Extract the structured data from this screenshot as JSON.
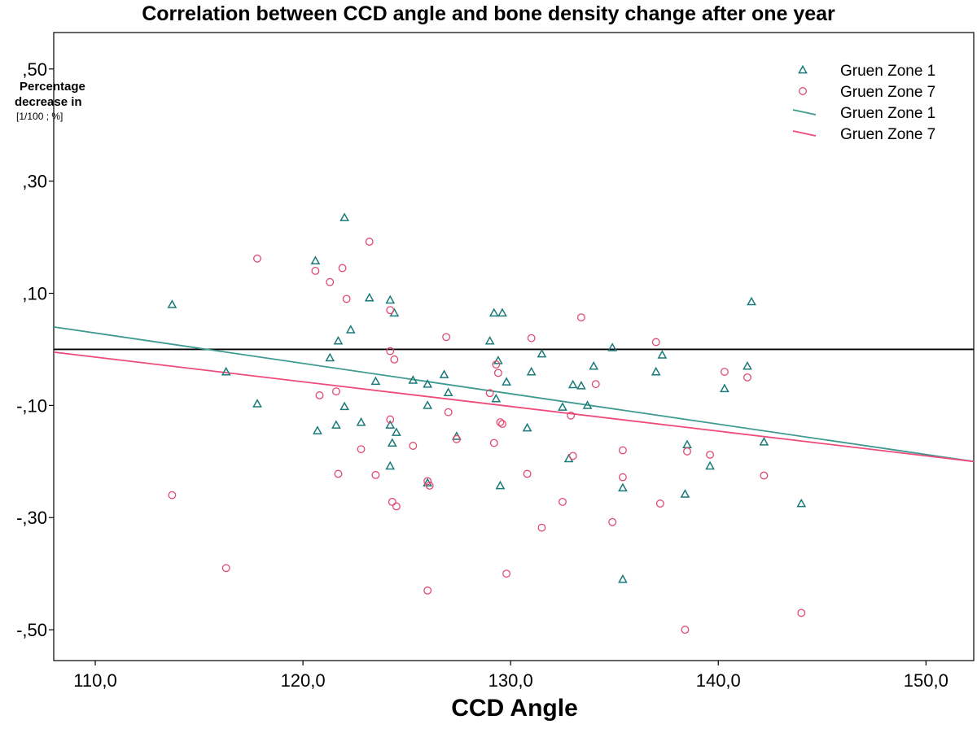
{
  "chart_data": {
    "type": "scatter",
    "title": "Correlation between CCD angle and bone density change after one year",
    "xlabel": "CCD Angle",
    "ylabel_lines": [
      "Percentage",
      "decrease in"
    ],
    "ylabel_unit": "[1/100 ; %]",
    "xlim": [
      108,
      152.3
    ],
    "ylim": [
      -0.555,
      0.565
    ],
    "x_ticks": [
      110,
      120,
      130,
      140,
      150
    ],
    "x_tick_labels": [
      "110,0",
      "120,0",
      "130,0",
      "140,0",
      "150,0"
    ],
    "y_ticks": [
      0.5,
      0.3,
      0.1,
      -0.1,
      -0.3,
      -0.5
    ],
    "y_tick_labels": [
      ",50",
      ",30",
      ",10",
      "-,10",
      "-,30",
      "-,50"
    ],
    "reference_line_y": 0.0,
    "legend": [
      {
        "label": "Gruen Zone 1",
        "kind": "marker"
      },
      {
        "label": "Gruen Zone 7",
        "kind": "marker"
      },
      {
        "label": "Gruen Zone 1",
        "kind": "line"
      },
      {
        "label": "Gruen Zone 7",
        "kind": "line"
      }
    ],
    "colors": {
      "zone1": "#1a7a7a",
      "zone7": "#e04a70",
      "zone1_fit": "#3e9a90",
      "zone7_fit": "#ee4a7a",
      "reference": "#000000"
    },
    "series": [
      {
        "name": "Gruen Zone 1",
        "marker": "triangle",
        "color": "#1a7a7a",
        "points": [
          [
            113.7,
            0.08
          ],
          [
            116.3,
            -0.04
          ],
          [
            117.8,
            -0.097
          ],
          [
            120.6,
            0.158
          ],
          [
            120.7,
            -0.145
          ],
          [
            121.3,
            -0.015
          ],
          [
            121.6,
            -0.135
          ],
          [
            121.7,
            0.015
          ],
          [
            122.0,
            -0.102
          ],
          [
            122.0,
            0.235
          ],
          [
            122.3,
            0.035
          ],
          [
            123.2,
            0.092
          ],
          [
            123.5,
            -0.057
          ],
          [
            122.8,
            -0.13
          ],
          [
            124.2,
            0.088
          ],
          [
            124.4,
            0.065
          ],
          [
            124.2,
            -0.135
          ],
          [
            124.3,
            -0.167
          ],
          [
            124.5,
            -0.148
          ],
          [
            124.2,
            -0.208
          ],
          [
            125.3,
            -0.055
          ],
          [
            126.0,
            -0.062
          ],
          [
            126.0,
            -0.1
          ],
          [
            126.0,
            -0.238
          ],
          [
            126.8,
            -0.045
          ],
          [
            127.0,
            -0.077
          ],
          [
            127.4,
            -0.155
          ],
          [
            129.0,
            0.015
          ],
          [
            129.2,
            0.065
          ],
          [
            129.3,
            -0.088
          ],
          [
            129.4,
            -0.02
          ],
          [
            129.6,
            0.065
          ],
          [
            129.5,
            -0.243
          ],
          [
            129.8,
            -0.058
          ],
          [
            130.8,
            -0.14
          ],
          [
            131.0,
            -0.04
          ],
          [
            131.5,
            -0.008
          ],
          [
            132.5,
            -0.103
          ],
          [
            132.8,
            -0.195
          ],
          [
            133.0,
            -0.063
          ],
          [
            133.4,
            -0.065
          ],
          [
            133.7,
            -0.1
          ],
          [
            134.0,
            -0.03
          ],
          [
            134.9,
            0.003
          ],
          [
            135.4,
            -0.247
          ],
          [
            135.4,
            -0.41
          ],
          [
            137.0,
            -0.04
          ],
          [
            137.3,
            -0.01
          ],
          [
            138.4,
            -0.258
          ],
          [
            138.5,
            -0.17
          ],
          [
            139.6,
            -0.208
          ],
          [
            140.3,
            -0.07
          ],
          [
            141.4,
            -0.03
          ],
          [
            141.6,
            0.085
          ],
          [
            142.2,
            -0.165
          ],
          [
            144.0,
            -0.275
          ]
        ]
      },
      {
        "name": "Gruen Zone 7",
        "marker": "circle",
        "color": "#e04a70",
        "points": [
          [
            113.7,
            -0.26
          ],
          [
            116.3,
            -0.39
          ],
          [
            117.8,
            0.162
          ],
          [
            120.6,
            0.14
          ],
          [
            120.8,
            -0.082
          ],
          [
            121.3,
            0.12
          ],
          [
            121.6,
            -0.075
          ],
          [
            121.7,
            -0.222
          ],
          [
            121.9,
            0.145
          ],
          [
            122.1,
            0.09
          ],
          [
            122.8,
            -0.178
          ],
          [
            123.2,
            0.192
          ],
          [
            123.5,
            -0.224
          ],
          [
            124.2,
            -0.003
          ],
          [
            124.2,
            0.07
          ],
          [
            124.2,
            -0.125
          ],
          [
            124.4,
            -0.018
          ],
          [
            124.3,
            -0.272
          ],
          [
            124.5,
            -0.28
          ],
          [
            125.3,
            -0.172
          ],
          [
            126.0,
            -0.235
          ],
          [
            126.0,
            -0.43
          ],
          [
            126.1,
            -0.243
          ],
          [
            126.9,
            0.022
          ],
          [
            127.0,
            -0.112
          ],
          [
            127.4,
            -0.16
          ],
          [
            129.0,
            -0.078
          ],
          [
            129.2,
            -0.167
          ],
          [
            129.3,
            -0.027
          ],
          [
            129.4,
            -0.042
          ],
          [
            129.5,
            -0.13
          ],
          [
            129.6,
            -0.133
          ],
          [
            129.8,
            -0.4
          ],
          [
            130.8,
            -0.222
          ],
          [
            131.0,
            0.02
          ],
          [
            131.5,
            -0.318
          ],
          [
            132.5,
            -0.272
          ],
          [
            132.9,
            -0.118
          ],
          [
            133.0,
            -0.19
          ],
          [
            133.4,
            0.057
          ],
          [
            134.1,
            -0.062
          ],
          [
            134.9,
            -0.308
          ],
          [
            135.4,
            -0.18
          ],
          [
            135.4,
            -0.228
          ],
          [
            137.0,
            0.013
          ],
          [
            137.2,
            -0.275
          ],
          [
            138.4,
            -0.5
          ],
          [
            138.5,
            -0.182
          ],
          [
            139.6,
            -0.188
          ],
          [
            140.3,
            -0.04
          ],
          [
            141.4,
            -0.05
          ],
          [
            142.2,
            -0.225
          ],
          [
            144.0,
            -0.47
          ]
        ]
      }
    ],
    "fit_lines": [
      {
        "name": "Gruen Zone 1",
        "color": "#3e9a90",
        "x": [
          108,
          152.3
        ],
        "y": [
          0.04,
          -0.2
        ]
      },
      {
        "name": "Gruen Zone 7",
        "color": "#ee4a7a",
        "x": [
          108,
          152.3
        ],
        "y": [
          -0.005,
          -0.2
        ]
      }
    ]
  }
}
